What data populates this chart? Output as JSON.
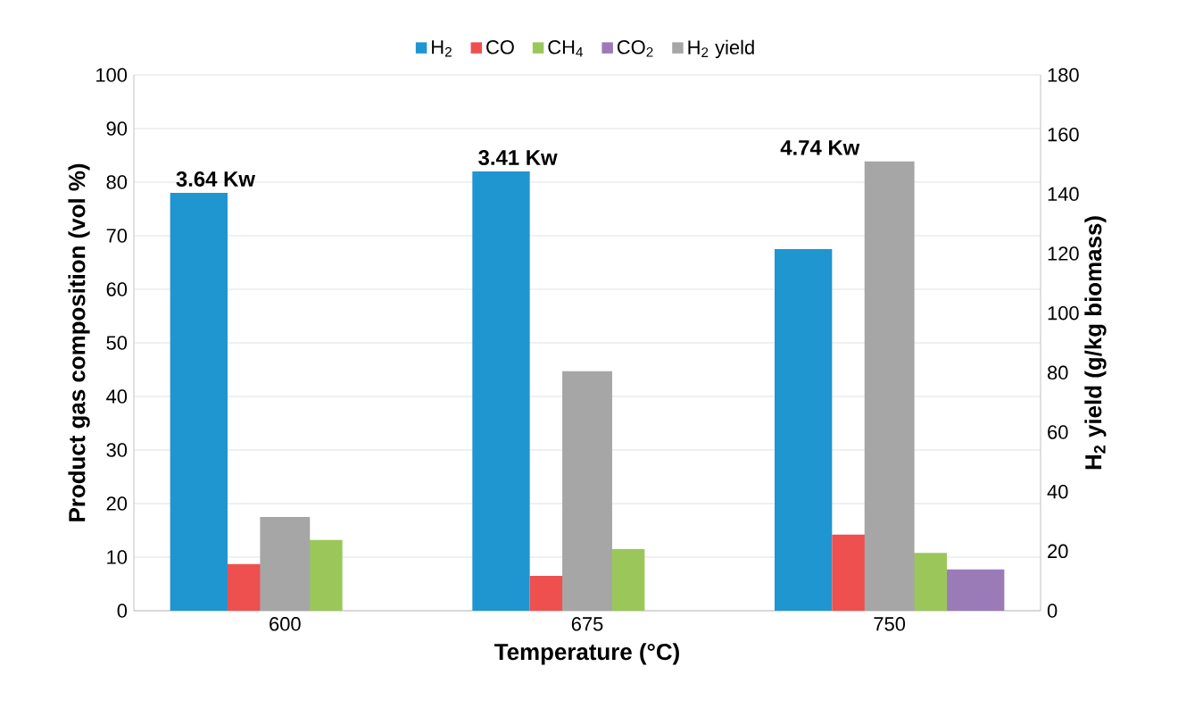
{
  "chart_data": {
    "type": "bar",
    "xlabel": "Temperature (°C)",
    "ylabel": "Product gas composition (vol %)",
    "y2label": "H$_{2}$ yield (g/kg biomass)",
    "categories": [
      "600",
      "675",
      "750"
    ],
    "series": [
      {
        "name": "H$_{2}$",
        "color": "#1f96d0",
        "values": [
          78,
          82,
          67.5
        ]
      },
      {
        "name": "CO",
        "color": "#ee5050",
        "values": [
          8.7,
          6.5,
          14.2
        ]
      },
      {
        "name": "CH$_{4}$",
        "color": "#9bc75a",
        "values": [
          13.2,
          11.5,
          10.8
        ]
      },
      {
        "name": "CO$_{2}$",
        "color": "#9a7bb8",
        "values": [
          null,
          null,
          7.7
        ]
      },
      {
        "name": "H$_{2}$ yield",
        "color": "#a6a6a6",
        "values": [
          31.5,
          80.5,
          151
        ],
        "axis": "y2"
      }
    ],
    "ylim": [
      0,
      100
    ],
    "yticks": [
      0,
      10,
      20,
      30,
      40,
      50,
      60,
      70,
      80,
      90,
      100
    ],
    "y2lim": [
      0,
      180
    ],
    "y2ticks": [
      0,
      20,
      40,
      60,
      80,
      100,
      120,
      140,
      160,
      180
    ],
    "grid": "y",
    "legend": "top",
    "annotations": [
      "3.64 Kw",
      "3.41 Kw",
      "4.74 Kw"
    ]
  }
}
